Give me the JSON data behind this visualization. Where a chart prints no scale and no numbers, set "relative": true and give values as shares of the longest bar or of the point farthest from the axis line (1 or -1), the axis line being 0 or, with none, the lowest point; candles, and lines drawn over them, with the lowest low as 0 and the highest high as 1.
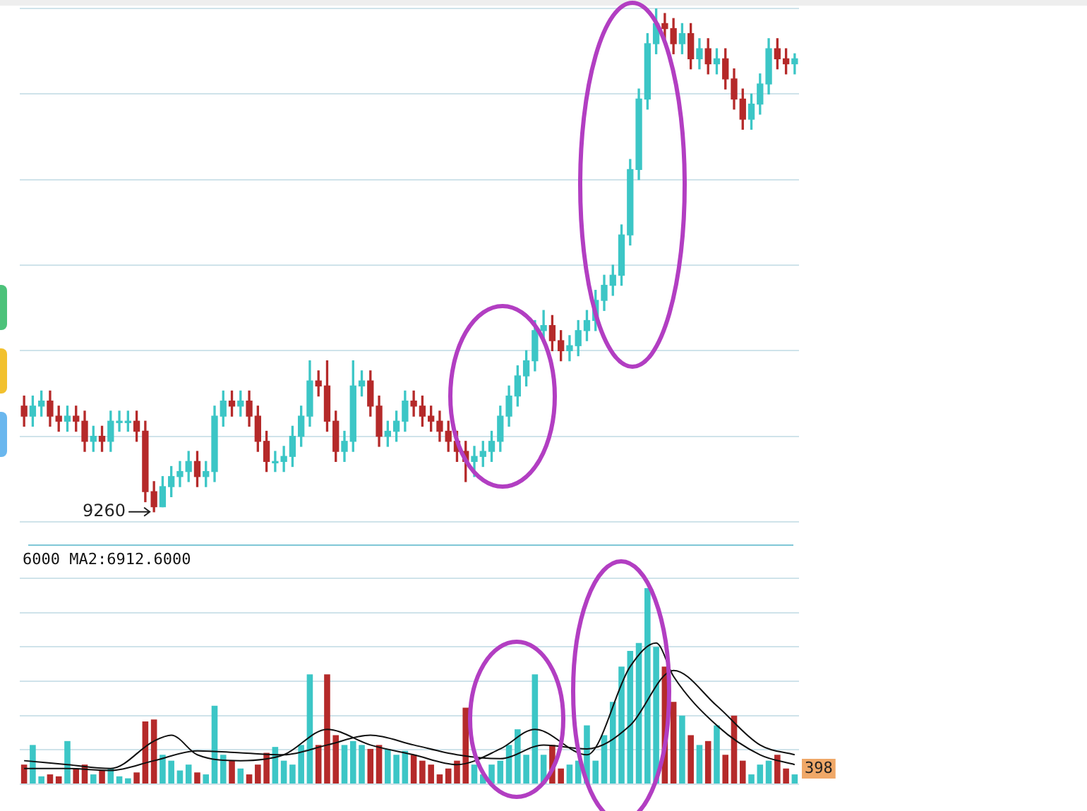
{
  "chart_data": [
    {
      "type": "candlestick",
      "relative": true,
      "categories": [
        null,
        null,
        null,
        null,
        null,
        null,
        null,
        null,
        null,
        null,
        null,
        null,
        null,
        null,
        null,
        null,
        null,
        null,
        null,
        null,
        null,
        null,
        null,
        null,
        null,
        null,
        null,
        null,
        null,
        null,
        null,
        null,
        null,
        null,
        null,
        null,
        null,
        null,
        null,
        null,
        null,
        null,
        null,
        null,
        null,
        null,
        null,
        null,
        null,
        null,
        null,
        null,
        null,
        null,
        null,
        null,
        null,
        null,
        null,
        null,
        null,
        null,
        null,
        null,
        null,
        null,
        null,
        null,
        null,
        null,
        null,
        null,
        null,
        null,
        null,
        null,
        null,
        null,
        null,
        null,
        null,
        null,
        null,
        null,
        null,
        null,
        null,
        null,
        null,
        null
      ],
      "ohlc": [
        [
          0.21,
          0.23,
          0.17,
          0.19
        ],
        [
          0.19,
          0.23,
          0.17,
          0.21
        ],
        [
          0.21,
          0.24,
          0.19,
          0.22
        ],
        [
          0.22,
          0.24,
          0.17,
          0.19
        ],
        [
          0.19,
          0.21,
          0.16,
          0.18
        ],
        [
          0.18,
          0.21,
          0.16,
          0.19
        ],
        [
          0.19,
          0.21,
          0.16,
          0.18
        ],
        [
          0.18,
          0.2,
          0.12,
          0.14
        ],
        [
          0.14,
          0.17,
          0.12,
          0.15
        ],
        [
          0.15,
          0.17,
          0.12,
          0.14
        ],
        [
          0.14,
          0.2,
          0.12,
          0.18
        ],
        [
          0.18,
          0.2,
          0.16,
          0.18
        ],
        [
          0.18,
          0.2,
          0.16,
          0.18
        ],
        [
          0.18,
          0.2,
          0.14,
          0.16
        ],
        [
          0.16,
          0.18,
          0.02,
          0.04
        ],
        [
          0.04,
          0.06,
          0,
          0.01
        ],
        [
          0.01,
          0.07,
          0.01,
          0.05
        ],
        [
          0.05,
          0.09,
          0.03,
          0.07
        ],
        [
          0.07,
          0.1,
          0.05,
          0.08
        ],
        [
          0.08,
          0.12,
          0.06,
          0.1
        ],
        [
          0.1,
          0.12,
          0.05,
          0.07
        ],
        [
          0.07,
          0.1,
          0.05,
          0.08
        ],
        [
          0.08,
          0.21,
          0.06,
          0.19
        ],
        [
          0.19,
          0.24,
          0.17,
          0.22
        ],
        [
          0.22,
          0.24,
          0.19,
          0.21
        ],
        [
          0.21,
          0.24,
          0.19,
          0.22
        ],
        [
          0.22,
          0.24,
          0.17,
          0.19
        ],
        [
          0.19,
          0.21,
          0.12,
          0.14
        ],
        [
          0.14,
          0.16,
          0.08,
          0.1
        ],
        [
          0.1,
          0.12,
          0.08,
          0.1
        ],
        [
          0.1,
          0.13,
          0.08,
          0.11
        ],
        [
          0.11,
          0.17,
          0.09,
          0.15
        ],
        [
          0.15,
          0.21,
          0.13,
          0.19
        ],
        [
          0.19,
          0.3,
          0.17,
          0.26
        ],
        [
          0.26,
          0.28,
          0.23,
          0.25
        ],
        [
          0.25,
          0.3,
          0.16,
          0.18
        ],
        [
          0.18,
          0.2,
          0.1,
          0.12
        ],
        [
          0.12,
          0.16,
          0.1,
          0.14
        ],
        [
          0.14,
          0.3,
          0.12,
          0.25
        ],
        [
          0.25,
          0.28,
          0.23,
          0.26
        ],
        [
          0.26,
          0.28,
          0.19,
          0.21
        ],
        [
          0.21,
          0.23,
          0.13,
          0.15
        ],
        [
          0.15,
          0.18,
          0.13,
          0.16
        ],
        [
          0.16,
          0.2,
          0.14,
          0.18
        ],
        [
          0.18,
          0.24,
          0.16,
          0.22
        ],
        [
          0.22,
          0.24,
          0.19,
          0.21
        ],
        [
          0.21,
          0.23,
          0.17,
          0.19
        ],
        [
          0.19,
          0.21,
          0.16,
          0.18
        ],
        [
          0.18,
          0.2,
          0.14,
          0.16
        ],
        [
          0.16,
          0.18,
          0.12,
          0.14
        ],
        [
          0.14,
          0.16,
          0.1,
          0.12
        ],
        [
          0.12,
          0.14,
          0.06,
          0.1
        ],
        [
          0.1,
          0.13,
          0.07,
          0.11
        ],
        [
          0.11,
          0.14,
          0.09,
          0.12
        ],
        [
          0.12,
          0.16,
          0.1,
          0.14
        ],
        [
          0.14,
          0.21,
          0.12,
          0.19
        ],
        [
          0.19,
          0.25,
          0.17,
          0.23
        ],
        [
          0.23,
          0.29,
          0.21,
          0.27
        ],
        [
          0.27,
          0.32,
          0.25,
          0.3
        ],
        [
          0.3,
          0.38,
          0.28,
          0.36
        ],
        [
          0.36,
          0.4,
          0.34,
          0.37
        ],
        [
          0.37,
          0.39,
          0.32,
          0.34
        ],
        [
          0.34,
          0.36,
          0.3,
          0.32
        ],
        [
          0.32,
          0.35,
          0.3,
          0.33
        ],
        [
          0.33,
          0.38,
          0.31,
          0.36
        ],
        [
          0.36,
          0.4,
          0.34,
          0.38
        ],
        [
          0.38,
          0.44,
          0.36,
          0.42
        ],
        [
          0.42,
          0.47,
          0.4,
          0.45
        ],
        [
          0.45,
          0.49,
          0.43,
          0.47
        ],
        [
          0.47,
          0.57,
          0.45,
          0.55
        ],
        [
          0.55,
          0.7,
          0.53,
          0.68
        ],
        [
          0.68,
          0.84,
          0.66,
          0.82
        ],
        [
          0.82,
          0.95,
          0.8,
          0.93
        ],
        [
          0.93,
          1,
          0.91,
          0.97
        ],
        [
          0.97,
          0.99,
          0.94,
          0.96
        ],
        [
          0.96,
          0.98,
          0.91,
          0.93
        ],
        [
          0.93,
          0.97,
          0.91,
          0.95
        ],
        [
          0.95,
          0.97,
          0.88,
          0.9
        ],
        [
          0.9,
          0.94,
          0.88,
          0.92
        ],
        [
          0.92,
          0.94,
          0.87,
          0.89
        ],
        [
          0.89,
          0.92,
          0.87,
          0.9
        ],
        [
          0.9,
          0.92,
          0.84,
          0.86
        ],
        [
          0.86,
          0.88,
          0.8,
          0.82
        ],
        [
          0.82,
          0.84,
          0.76,
          0.78
        ],
        [
          0.78,
          0.83,
          0.76,
          0.81
        ],
        [
          0.81,
          0.87,
          0.79,
          0.85
        ],
        [
          0.85,
          0.94,
          0.83,
          0.92
        ],
        [
          0.92,
          0.94,
          0.88,
          0.9
        ],
        [
          0.9,
          0.92,
          0.87,
          0.89
        ],
        [
          0.89,
          0.91,
          0.87,
          0.9
        ]
      ],
      "colors": [
        "#b52a2a",
        "#3cc6c6",
        "#3cc6c6",
        "#b52a2a",
        "#b52a2a",
        "#3cc6c6",
        "#b52a2a",
        "#b52a2a",
        "#3cc6c6",
        "#b52a2a",
        "#3cc6c6",
        "#3cc6c6",
        "#3cc6c6",
        "#b52a2a",
        "#b52a2a",
        "#b52a2a",
        "#3cc6c6",
        "#3cc6c6",
        "#3cc6c6",
        "#3cc6c6",
        "#b52a2a",
        "#3cc6c6",
        "#3cc6c6",
        "#3cc6c6",
        "#b52a2a",
        "#3cc6c6",
        "#b52a2a",
        "#b52a2a",
        "#b52a2a",
        "#3cc6c6",
        "#3cc6c6",
        "#3cc6c6",
        "#3cc6c6",
        "#3cc6c6",
        "#b52a2a",
        "#b52a2a",
        "#b52a2a",
        "#3cc6c6",
        "#3cc6c6",
        "#3cc6c6",
        "#b52a2a",
        "#b52a2a",
        "#3cc6c6",
        "#3cc6c6",
        "#3cc6c6",
        "#b52a2a",
        "#b52a2a",
        "#b52a2a",
        "#b52a2a",
        "#b52a2a",
        "#b52a2a",
        "#b52a2a",
        "#3cc6c6",
        "#3cc6c6",
        "#3cc6c6",
        "#3cc6c6",
        "#3cc6c6",
        "#3cc6c6",
        "#3cc6c6",
        "#3cc6c6",
        "#3cc6c6",
        "#b52a2a",
        "#b52a2a",
        "#3cc6c6",
        "#3cc6c6",
        "#3cc6c6",
        "#3cc6c6",
        "#3cc6c6",
        "#3cc6c6",
        "#3cc6c6",
        "#3cc6c6",
        "#3cc6c6",
        "#3cc6c6",
        "#3cc6c6",
        "#b52a2a",
        "#b52a2a",
        "#3cc6c6",
        "#b52a2a",
        "#3cc6c6",
        "#b52a2a",
        "#3cc6c6",
        "#b52a2a",
        "#b52a2a",
        "#b52a2a",
        "#3cc6c6",
        "#3cc6c6",
        "#3cc6c6",
        "#b52a2a",
        "#b52a2a",
        "#3cc6c6"
      ],
      "annotations": [
        "9260"
      ],
      "grid": "y",
      "tick_labels": false
    },
    {
      "type": "bar",
      "relative": true,
      "categories": [
        null,
        null,
        null,
        null,
        null,
        null,
        null,
        null,
        null,
        null,
        null,
        null,
        null,
        null,
        null,
        null,
        null,
        null,
        null,
        null,
        null,
        null,
        null,
        null,
        null,
        null,
        null,
        null,
        null,
        null,
        null,
        null,
        null,
        null,
        null,
        null,
        null,
        null,
        null,
        null,
        null,
        null,
        null,
        null,
        null,
        null,
        null,
        null,
        null,
        null,
        null,
        null,
        null,
        null,
        null,
        null,
        null,
        null,
        null,
        null,
        null,
        null,
        null,
        null,
        null,
        null,
        null,
        null,
        null,
        null,
        null,
        null,
        null,
        null,
        null,
        null,
        null,
        null,
        null,
        null,
        null,
        null,
        null,
        null,
        null,
        null,
        null,
        null,
        null,
        null
      ],
      "series": [
        {
          "type": "bar",
          "values": [
            0.1,
            0.2,
            0.04,
            0.05,
            0.04,
            0.22,
            0.08,
            0.1,
            0.05,
            0.07,
            0.08,
            0.04,
            0.03,
            0.06,
            0.32,
            0.33,
            0.15,
            0.12,
            0.07,
            0.1,
            0.06,
            0.05,
            0.4,
            0.15,
            0.12,
            0.08,
            0.05,
            0.1,
            0.16,
            0.19,
            0.12,
            0.1,
            0.2,
            0.56,
            0.2,
            0.56,
            0.25,
            0.2,
            0.22,
            0.2,
            0.18,
            0.2,
            0.18,
            0.15,
            0.17,
            0.15,
            0.12,
            0.1,
            0.05,
            0.08,
            0.12,
            0.39,
            0.1,
            0.05,
            0.1,
            0.12,
            0.2,
            0.28,
            0.15,
            0.56,
            0.15,
            0.2,
            0.08,
            0.1,
            0.12,
            0.3,
            0.12,
            0.25,
            0.42,
            0.6,
            0.68,
            0.72,
            1,
            0.7,
            0.6,
            0.42,
            0.35,
            0.25,
            0.2,
            0.22,
            0.3,
            0.15,
            0.35,
            0.12,
            0.05,
            0.1,
            0.12,
            0.15,
            0.08,
            0.05
          ],
          "colors": [
            "#b52a2a",
            "#3cc6c6",
            "#3cc6c6",
            "#b52a2a",
            "#b52a2a",
            "#3cc6c6",
            "#b52a2a",
            "#b52a2a",
            "#3cc6c6",
            "#b52a2a",
            "#3cc6c6",
            "#3cc6c6",
            "#3cc6c6",
            "#b52a2a",
            "#b52a2a",
            "#b52a2a",
            "#3cc6c6",
            "#3cc6c6",
            "#3cc6c6",
            "#3cc6c6",
            "#b52a2a",
            "#3cc6c6",
            "#3cc6c6",
            "#3cc6c6",
            "#b52a2a",
            "#3cc6c6",
            "#b52a2a",
            "#b52a2a",
            "#b52a2a",
            "#3cc6c6",
            "#3cc6c6",
            "#3cc6c6",
            "#3cc6c6",
            "#3cc6c6",
            "#b52a2a",
            "#b52a2a",
            "#b52a2a",
            "#3cc6c6",
            "#3cc6c6",
            "#3cc6c6",
            "#b52a2a",
            "#b52a2a",
            "#3cc6c6",
            "#3cc6c6",
            "#3cc6c6",
            "#b52a2a",
            "#b52a2a",
            "#b52a2a",
            "#b52a2a",
            "#b52a2a",
            "#b52a2a",
            "#b52a2a",
            "#3cc6c6",
            "#3cc6c6",
            "#3cc6c6",
            "#3cc6c6",
            "#3cc6c6",
            "#3cc6c6",
            "#3cc6c6",
            "#3cc6c6",
            "#3cc6c6",
            "#b52a2a",
            "#b52a2a",
            "#3cc6c6",
            "#3cc6c6",
            "#3cc6c6",
            "#3cc6c6",
            "#3cc6c6",
            "#3cc6c6",
            "#3cc6c6",
            "#3cc6c6",
            "#3cc6c6",
            "#3cc6c6",
            "#3cc6c6",
            "#b52a2a",
            "#b52a2a",
            "#3cc6c6",
            "#b52a2a",
            "#3cc6c6",
            "#b52a2a",
            "#3cc6c6",
            "#b52a2a",
            "#b52a2a",
            "#b52a2a",
            "#3cc6c6",
            "#3cc6c6",
            "#3cc6c6",
            "#b52a2a",
            "#b52a2a",
            "#3cc6c6"
          ]
        },
        {
          "type": "line",
          "color": "#111111",
          "values": [
            0.12,
            null,
            null,
            null,
            null,
            0.1,
            null,
            null,
            null,
            null,
            0.08,
            null,
            null,
            null,
            null,
            0.22,
            null,
            0.25,
            null,
            null,
            0.15,
            null,
            null,
            null,
            null,
            0.12,
            null,
            null,
            null,
            null,
            0.15,
            null,
            null,
            null,
            null,
            0.28,
            null,
            null,
            null,
            null,
            0.2,
            null,
            null,
            null,
            null,
            0.15,
            null,
            null,
            null,
            null,
            0.1,
            null,
            null,
            null,
            null,
            0.18,
            null,
            null,
            null,
            0.28,
            null,
            null,
            null,
            null,
            null,
            0.15,
            null,
            null,
            null,
            null,
            0.6,
            null,
            null,
            0.72,
            null,
            0.55,
            null,
            null,
            null,
            null,
            0.3,
            null,
            null,
            null,
            null,
            0.15,
            null,
            null,
            null,
            0.1
          ]
        },
        {
          "type": "line",
          "color": "#111111",
          "values": [
            0.08,
            null,
            null,
            null,
            null,
            0.08,
            null,
            null,
            null,
            null,
            0.07,
            null,
            null,
            null,
            null,
            0.12,
            null,
            null,
            null,
            null,
            0.17,
            null,
            null,
            null,
            null,
            0.16,
            null,
            null,
            null,
            null,
            0.15,
            null,
            null,
            null,
            null,
            0.2,
            null,
            null,
            null,
            null,
            0.25,
            null,
            null,
            null,
            null,
            0.2,
            null,
            null,
            null,
            null,
            0.15,
            null,
            null,
            null,
            null,
            0.13,
            null,
            null,
            null,
            null,
            0.2,
            null,
            null,
            null,
            null,
            0.18,
            null,
            null,
            null,
            null,
            0.3,
            null,
            null,
            null,
            null,
            0.58,
            null,
            null,
            null,
            null,
            0.4,
            null,
            null,
            null,
            null,
            0.2,
            null,
            null,
            null,
            0.15
          ]
        }
      ],
      "annotations": [
        "6000 MA2:6912.6000",
        "398"
      ],
      "grid": "y",
      "tick_labels": false
    }
  ]
}
